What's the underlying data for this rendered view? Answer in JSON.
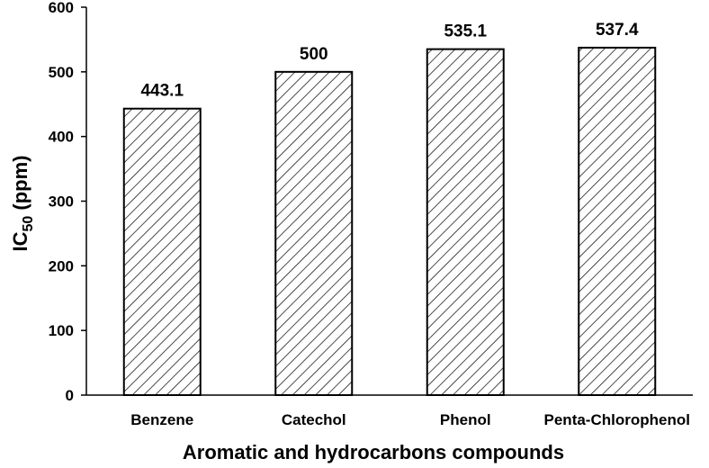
{
  "chart_data": {
    "type": "bar",
    "categories": [
      "Benzene",
      "Catechol",
      "Phenol",
      "Penta-Chlorophenol"
    ],
    "values": [
      443.1,
      500,
      535.1,
      537.4
    ],
    "data_labels": [
      "443.1",
      "500",
      "535.1",
      "537.4"
    ],
    "xlabel": "Aromatic and hydrocarbons compounds",
    "ylabel": {
      "prefix": "IC",
      "subscript": "50",
      "suffix": " (ppm)"
    },
    "ylim": [
      0,
      600
    ],
    "yticks": [
      "0",
      "100",
      "200",
      "300",
      "400",
      "500",
      "600"
    ],
    "grid": false,
    "bar_fill": "diagonal-hatch",
    "colors": {
      "bar_stroke": "#000000",
      "hatch": "#000000",
      "axis": "#000000",
      "background": "#ffffff"
    }
  }
}
